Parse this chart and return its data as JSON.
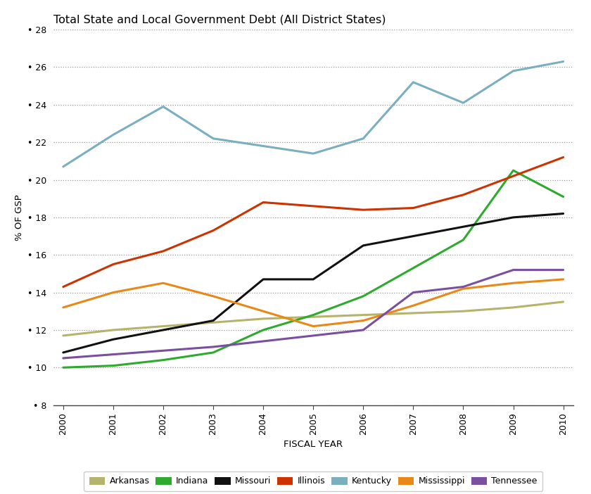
{
  "title": "Total State and Local Government Debt (All District States)",
  "xlabel": "FISCAL YEAR",
  "ylabel": "% OF GSP",
  "years": [
    2000,
    2001,
    2002,
    2003,
    2004,
    2005,
    2006,
    2007,
    2008,
    2009,
    2010
  ],
  "series": {
    "Arkansas": {
      "color": "#b5b46c",
      "values": [
        11.7,
        12.0,
        12.2,
        12.4,
        12.6,
        12.7,
        12.8,
        12.9,
        13.0,
        13.2,
        13.5
      ]
    },
    "Indiana": {
      "color": "#2eaa2e",
      "values": [
        10.0,
        10.1,
        10.4,
        10.8,
        12.0,
        12.8,
        13.8,
        15.3,
        16.8,
        20.5,
        19.1
      ]
    },
    "Missouri": {
      "color": "#111111",
      "values": [
        10.8,
        11.5,
        12.0,
        12.5,
        14.7,
        14.7,
        16.5,
        17.0,
        17.5,
        18.0,
        18.2
      ]
    },
    "Illinois": {
      "color": "#cc3300",
      "values": [
        14.3,
        15.5,
        16.2,
        17.3,
        18.8,
        18.6,
        18.4,
        18.5,
        19.2,
        20.2,
        21.2
      ]
    },
    "Kentucky": {
      "color": "#7aafc0",
      "values": [
        20.7,
        22.4,
        23.9,
        22.2,
        21.8,
        21.4,
        22.2,
        25.2,
        24.1,
        25.8,
        26.3
      ]
    },
    "Mississippi": {
      "color": "#e88818",
      "values": [
        13.2,
        14.0,
        14.5,
        13.8,
        13.0,
        12.2,
        12.5,
        13.3,
        14.2,
        14.5,
        14.7
      ]
    },
    "Tennessee": {
      "color": "#7b4fa0",
      "values": [
        10.5,
        10.7,
        10.9,
        11.1,
        11.4,
        11.7,
        12.0,
        14.0,
        14.3,
        15.2,
        15.2
      ]
    }
  },
  "ylim": [
    8,
    28
  ],
  "yticks": [
    8,
    10,
    12,
    14,
    16,
    18,
    20,
    22,
    24,
    26,
    28
  ],
  "grid_color": "#999999",
  "linewidth": 2.2,
  "title_fontsize": 11.5,
  "axis_label_fontsize": 9.5,
  "tick_fontsize": 9,
  "legend_fontsize": 9
}
